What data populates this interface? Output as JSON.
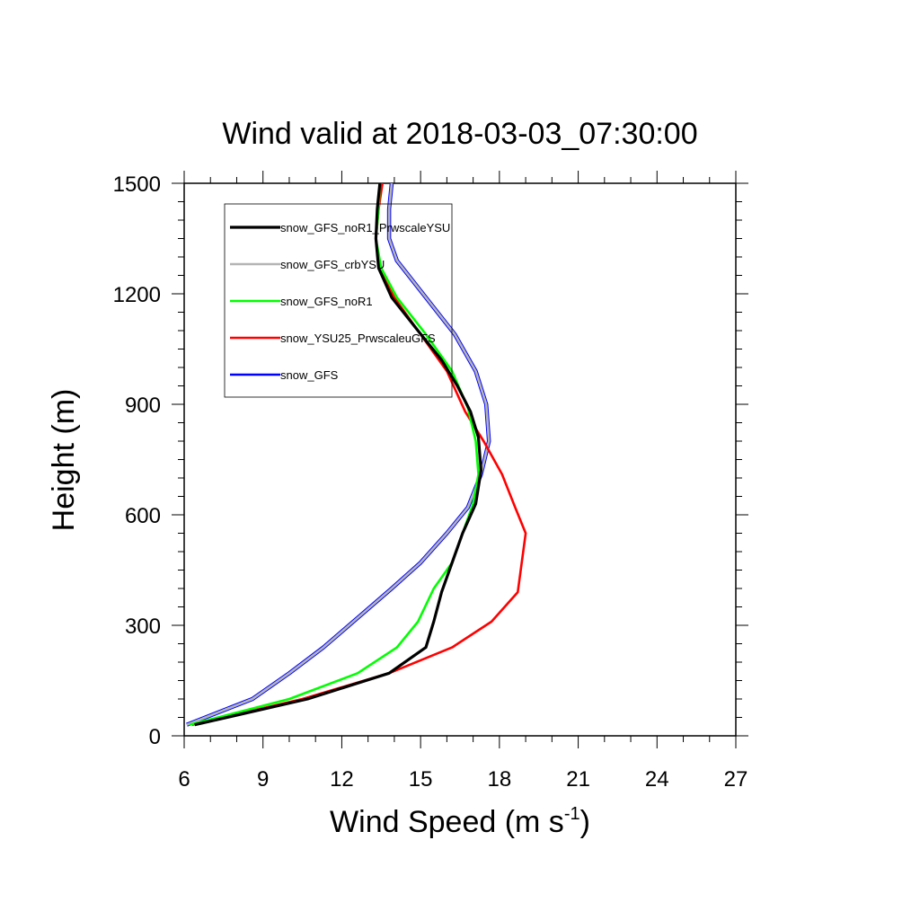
{
  "chart_data": {
    "type": "line",
    "title": "Wind valid at 2018-03-03_07:30:00",
    "xlabel": "Wind Speed (m s",
    "xlabel_sup": "-1",
    "xlabel_close": ")",
    "ylabel": "Height (m)",
    "xlim": [
      6,
      27
    ],
    "ylim": [
      0,
      1500
    ],
    "xticks": [
      6,
      9,
      12,
      15,
      18,
      21,
      24,
      27
    ],
    "yticks": [
      0,
      300,
      600,
      900,
      1200,
      1500
    ],
    "xtick_labels": [
      "6",
      "9",
      "12",
      "15",
      "18",
      "21",
      "24",
      "27"
    ],
    "ytick_labels": [
      "0",
      "300",
      "600",
      "900",
      "1200",
      "1500"
    ],
    "grid": false,
    "legend_position": "top-left",
    "series": [
      {
        "name": "snow_GFS_noR1_PrwscaleYSU",
        "color": "#000000",
        "points": [
          [
            6.4,
            30
          ],
          [
            10.7,
            100
          ],
          [
            13.8,
            170
          ],
          [
            15.2,
            240
          ],
          [
            15.5,
            310
          ],
          [
            15.8,
            390
          ],
          [
            16.2,
            470
          ],
          [
            16.6,
            550
          ],
          [
            17.1,
            630
          ],
          [
            17.3,
            720
          ],
          [
            17.2,
            810
          ],
          [
            16.9,
            880
          ],
          [
            16.4,
            950
          ],
          [
            15.8,
            1020
          ],
          [
            14.9,
            1100
          ],
          [
            13.9,
            1190
          ],
          [
            13.4,
            1270
          ],
          [
            13.3,
            1350
          ],
          [
            13.35,
            1430
          ],
          [
            13.45,
            1500
          ]
        ]
      },
      {
        "name": "snow_GFS_crbYSU",
        "color": "#b4b4b4",
        "points": [
          [
            6.1,
            30
          ],
          [
            8.6,
            100
          ],
          [
            10.0,
            170
          ],
          [
            11.3,
            240
          ],
          [
            12.6,
            320
          ],
          [
            13.9,
            400
          ],
          [
            15.0,
            470
          ],
          [
            16.0,
            550
          ],
          [
            16.8,
            620
          ],
          [
            17.3,
            710
          ],
          [
            17.6,
            800
          ],
          [
            17.5,
            900
          ],
          [
            17.1,
            990
          ],
          [
            16.3,
            1090
          ],
          [
            15.2,
            1190
          ],
          [
            14.1,
            1290
          ],
          [
            13.8,
            1350
          ],
          [
            13.8,
            1430
          ],
          [
            13.9,
            1500
          ]
        ]
      },
      {
        "name": "snow_GFS_noR1",
        "color": "#00ff00",
        "points": [
          [
            6.2,
            30
          ],
          [
            10.0,
            100
          ],
          [
            12.6,
            170
          ],
          [
            14.1,
            240
          ],
          [
            14.9,
            310
          ],
          [
            15.5,
            400
          ],
          [
            16.2,
            470
          ],
          [
            16.6,
            550
          ],
          [
            17.0,
            630
          ],
          [
            17.2,
            710
          ],
          [
            17.1,
            800
          ],
          [
            16.8,
            890
          ],
          [
            16.2,
            990
          ],
          [
            15.2,
            1090
          ],
          [
            14.1,
            1190
          ],
          [
            13.5,
            1270
          ],
          [
            13.3,
            1350
          ],
          [
            13.4,
            1430
          ],
          [
            13.45,
            1500
          ]
        ]
      },
      {
        "name": "snow_YSU25_PrwscaleuGFS",
        "color": "#ff0000",
        "points": [
          [
            6.3,
            30
          ],
          [
            10.5,
            100
          ],
          [
            13.8,
            170
          ],
          [
            16.2,
            240
          ],
          [
            17.7,
            310
          ],
          [
            18.7,
            390
          ],
          [
            19.0,
            550
          ],
          [
            18.6,
            620
          ],
          [
            18.1,
            710
          ],
          [
            17.4,
            800
          ],
          [
            16.7,
            880
          ],
          [
            16.0,
            990
          ],
          [
            15.0,
            1090
          ],
          [
            14.0,
            1190
          ],
          [
            13.4,
            1270
          ],
          [
            13.3,
            1350
          ],
          [
            13.4,
            1430
          ],
          [
            13.55,
            1500
          ]
        ]
      },
      {
        "name": "snow_GFS",
        "color": "#0000ff",
        "points": [
          [
            6.1,
            30
          ],
          [
            8.6,
            100
          ],
          [
            10.0,
            170
          ],
          [
            11.3,
            240
          ],
          [
            12.6,
            320
          ],
          [
            13.9,
            400
          ],
          [
            15.0,
            470
          ],
          [
            16.0,
            550
          ],
          [
            16.8,
            620
          ],
          [
            17.3,
            710
          ],
          [
            17.6,
            800
          ],
          [
            17.5,
            900
          ],
          [
            17.1,
            990
          ],
          [
            16.3,
            1090
          ],
          [
            15.2,
            1190
          ],
          [
            14.1,
            1290
          ],
          [
            13.8,
            1350
          ],
          [
            13.8,
            1430
          ],
          [
            13.9,
            1500
          ]
        ]
      }
    ]
  }
}
